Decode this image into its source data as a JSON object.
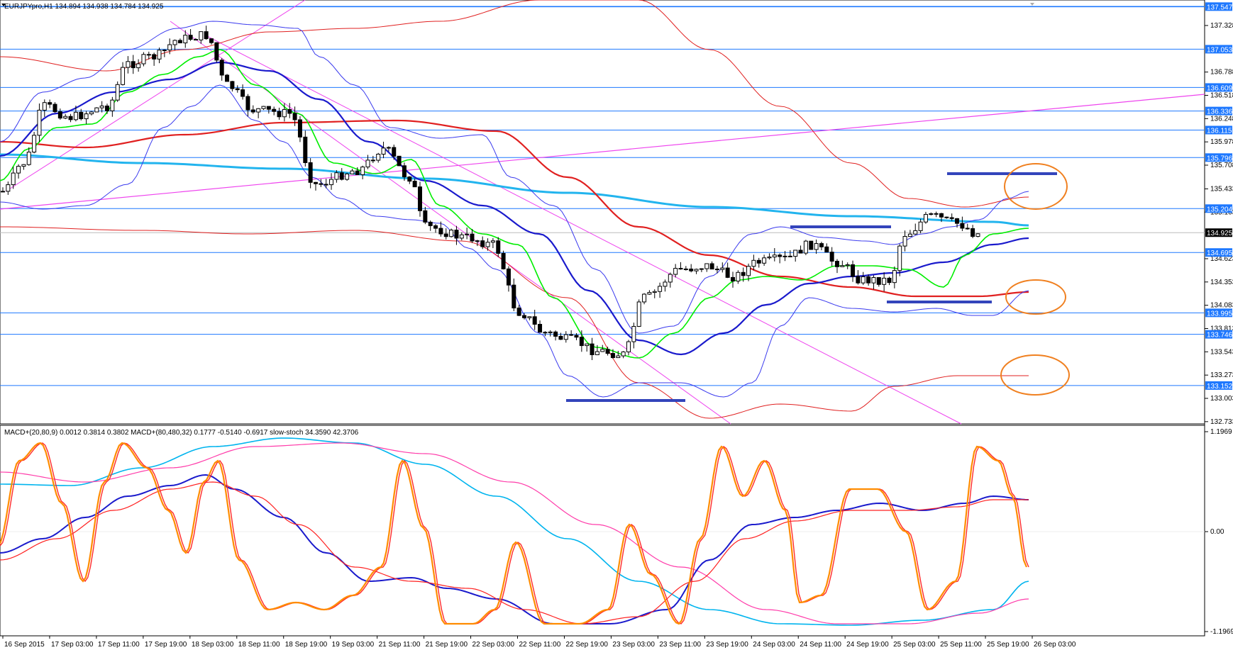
{
  "chart_header": {
    "symbol_line": "EURJPYpro,H1  134.894 134.938 134.784 134.925",
    "indicator_line": "MACD+(20,80,9) 0.0012 0.3814 0.3802   MACD+(80,480,32) 0.1777 -0.5140 -0.6917   slow-stoch 34.3590 42.3706"
  },
  "colors": {
    "candle_up": "#ffffff",
    "candle_down": "#000000",
    "ma_fast": "#00ee00",
    "ma_mid": "#1a1acc",
    "ma_slow": "#e02020",
    "ma_long": "#22b4ee",
    "bollinger": "#3a3aee",
    "trend_line": "#ee44ee",
    "level_line": "#1e78ff",
    "price_tag_bg": "#1e78ff",
    "current_tag_bg": "#000000",
    "annotation_orange": "#f08020",
    "annotation_bar": "#3344bb",
    "stoch_main": "#ff8c00",
    "stoch_signal": "#ff2a2a",
    "macd1_main": "#1a1acc",
    "macd1_signal": "#ff2020",
    "macd2_main": "#00b4ee",
    "macd2_signal": "#ff3caa"
  },
  "price_axis": [
    "137.328",
    "136.788",
    "136.518",
    "136.248",
    "135.978",
    "135.708",
    "135.433",
    "135.163",
    "134.623",
    "134.353",
    "134.083",
    "133.813",
    "133.543",
    "133.273",
    "133.003",
    "132.733"
  ],
  "level_tags": [
    "137.547",
    "137.053",
    "136.609",
    "136.336",
    "136.115",
    "135.796",
    "135.204",
    "134.695",
    "133.995",
    "133.746",
    "133.152"
  ],
  "current_price": "134.925",
  "indicator_axis": [
    "1.1969",
    "0.00",
    "-1.1969"
  ],
  "time_axis": [
    "16 Sep 2015",
    "17 Sep 03:00",
    "17 Sep 11:00",
    "17 Sep 19:00",
    "18 Sep 03:00",
    "18 Sep 11:00",
    "18 Sep 19:00",
    "19 Sep 03:00",
    "21 Sep 11:00",
    "21 Sep 19:00",
    "22 Sep 03:00",
    "22 Sep 11:00",
    "22 Sep 19:00",
    "23 Sep 03:00",
    "23 Sep 11:00",
    "23 Sep 19:00",
    "24 Sep 03:00",
    "24 Sep 11:00",
    "24 Sep 19:00",
    "25 Sep 03:00",
    "25 Sep 11:00",
    "25 Sep 19:00",
    "26 Sep 03:00"
  ]
}
